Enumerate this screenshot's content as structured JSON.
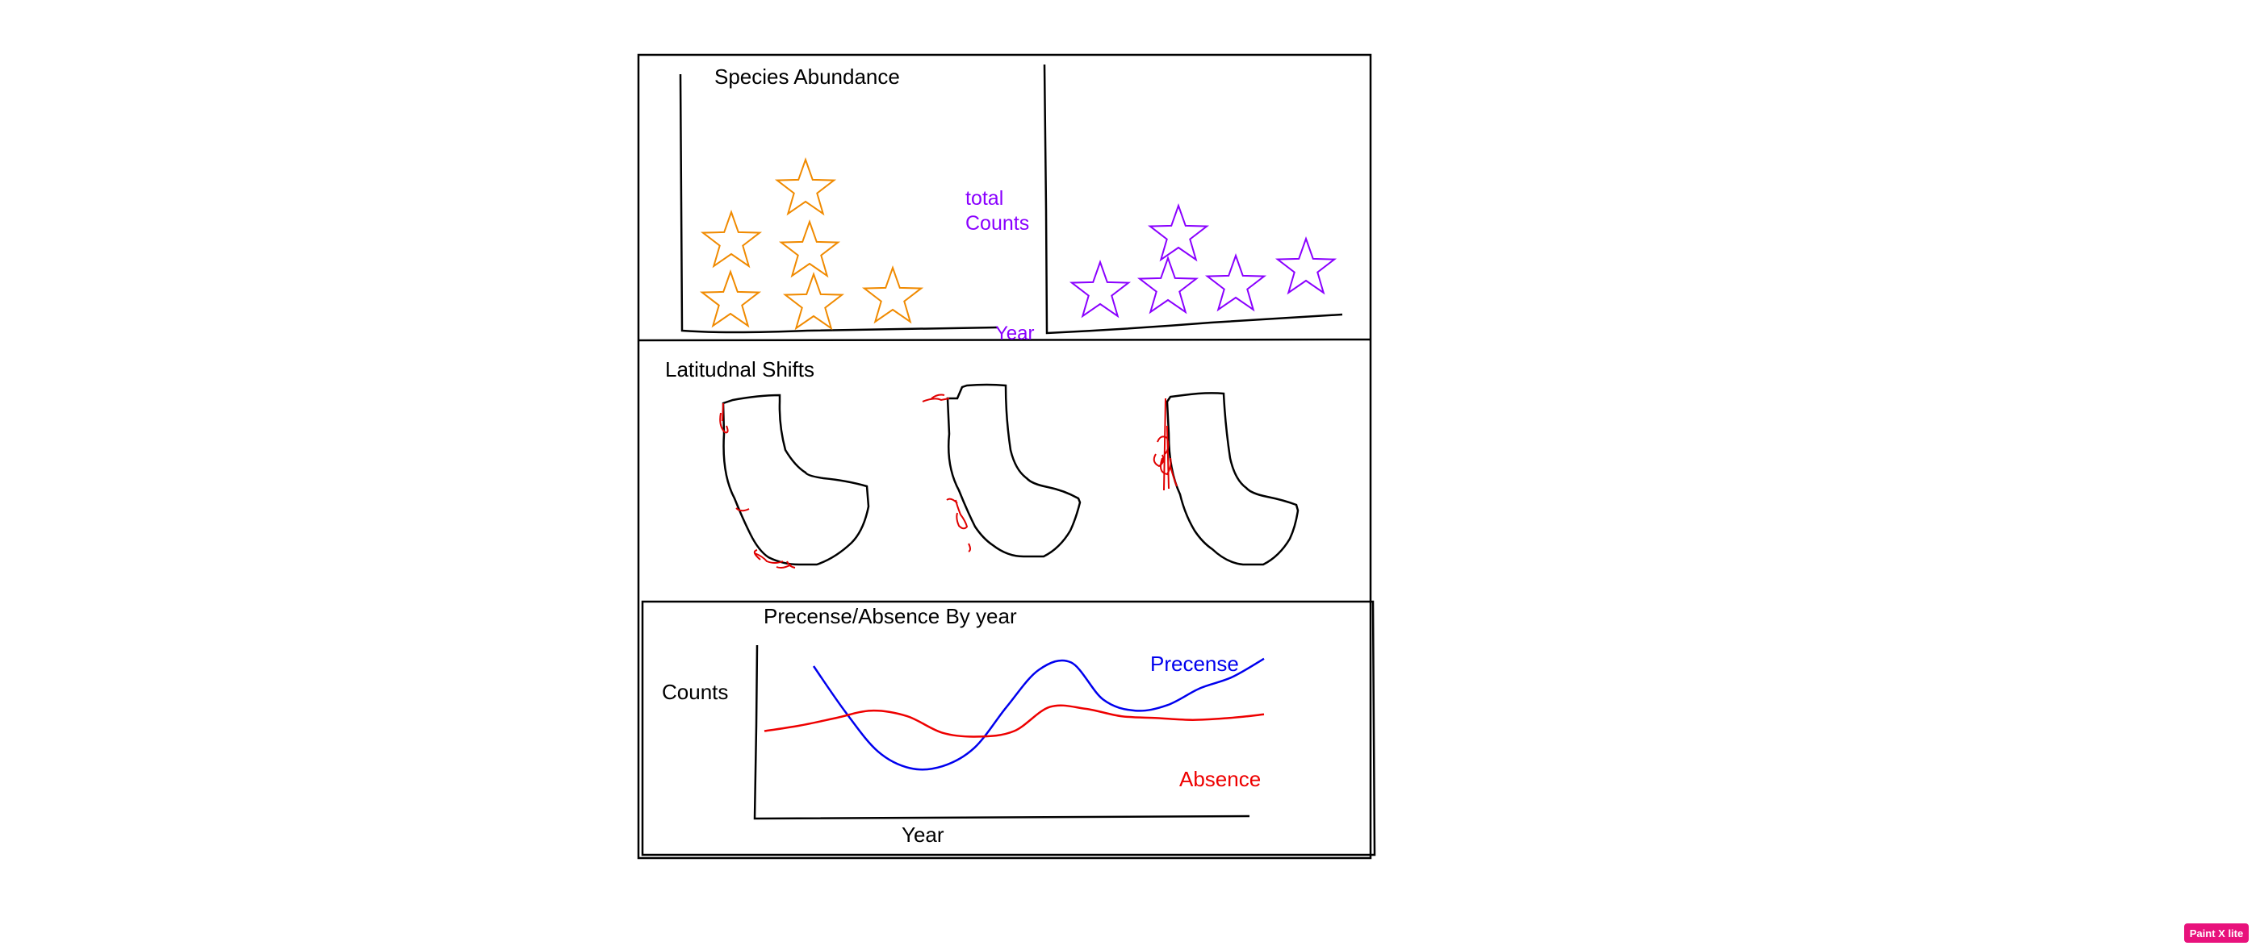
{
  "colors": {
    "ink": "#000000",
    "star_orange": "#f08a00",
    "accent_purple": "#8a00ff",
    "marker_red": "#e00000",
    "presence_blue": "#0000ee",
    "absence_red": "#ee0000",
    "badge": "#e8127c"
  },
  "icons": {
    "star": "star-icon",
    "map": "state-outline-icon"
  },
  "abundance_panel": {
    "title": "Species Abundance",
    "ylabel": "total\nCounts",
    "ylabel_line1": "total",
    "ylabel_line2": "Counts",
    "xlabel": "Year",
    "left_star_count": 6,
    "right_star_count": 5
  },
  "shifts_panel": {
    "title": "Latitudnal Shifts",
    "map_count": 3
  },
  "chart_data": {
    "type": "line",
    "title": "Precense/Absence By year",
    "xlabel": "Year",
    "ylabel": "Counts",
    "x": [
      0,
      1,
      2,
      3,
      4,
      5,
      6,
      7,
      8,
      9,
      10,
      11,
      12,
      13,
      14
    ],
    "series": [
      {
        "name": "Precense",
        "color": "#0000ee",
        "values": [
          8.0,
          5.5,
          3.4,
          2.5,
          2.6,
          3.6,
          5.8,
          7.8,
          8.2,
          6.2,
          5.6,
          5.9,
          6.8,
          7.4,
          8.4
        ]
      },
      {
        "name": "Absence",
        "color": "#ee0000",
        "values": [
          4.5,
          4.8,
          5.2,
          5.6,
          5.3,
          4.4,
          4.2,
          4.5,
          5.8,
          5.7,
          5.3,
          5.2,
          5.1,
          5.2,
          5.4
        ]
      }
    ],
    "xlim": [
      0,
      14
    ],
    "ylim": [
      0,
      10
    ],
    "legend": "inline labels, top-right and bottom-right",
    "grid": false
  },
  "badge": {
    "label": "Paint X lite"
  }
}
